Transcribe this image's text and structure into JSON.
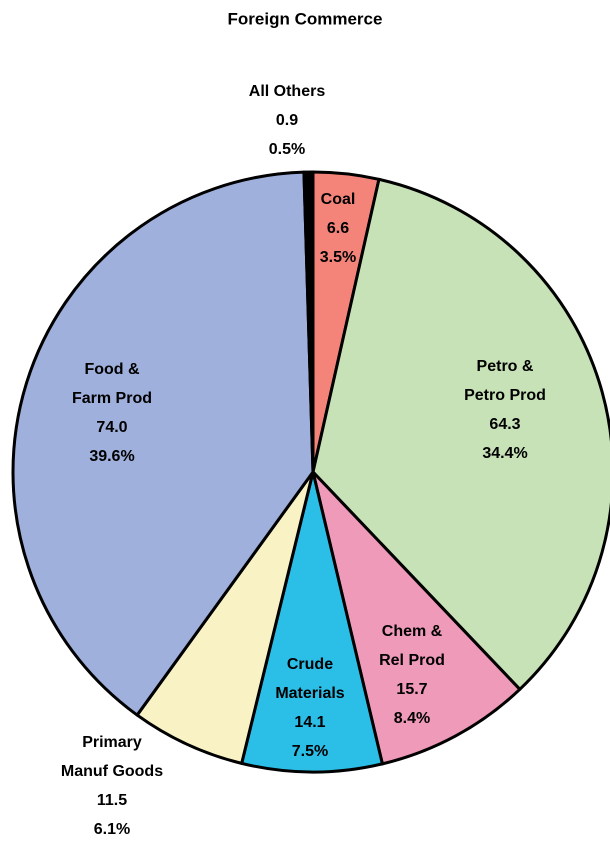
{
  "chart_data": {
    "type": "pie",
    "title": "Foreign Commerce",
    "categories": [
      [
        "Coal"
      ],
      [
        "Petro &",
        "Petro Prod"
      ],
      [
        "Chem &",
        "Rel Prod"
      ],
      [
        "Crude",
        "Materials"
      ],
      [
        "Primary",
        "Manuf Goods"
      ],
      [
        "Food &",
        "Farm Prod"
      ],
      [
        "All Others"
      ]
    ],
    "values": [
      6.6,
      64.3,
      15.7,
      14.1,
      11.5,
      74.0,
      0.9
    ],
    "value_labels": [
      "6.6",
      "64.3",
      "15.7",
      "14.1",
      "11.5",
      "74.0",
      "0.9"
    ],
    "percents": [
      3.5,
      34.4,
      8.4,
      7.5,
      6.1,
      39.6,
      0.5
    ],
    "percent_labels": [
      "3.5%",
      "34.4%",
      "8.4%",
      "7.5%",
      "6.1%",
      "39.6%",
      "0.5%"
    ],
    "colors": [
      "#f4847a",
      "#c8e2b8",
      "#ee9ab8",
      "#2bbfe8",
      "#f8f2c4",
      "#9fb0dc",
      "#000000"
    ]
  }
}
